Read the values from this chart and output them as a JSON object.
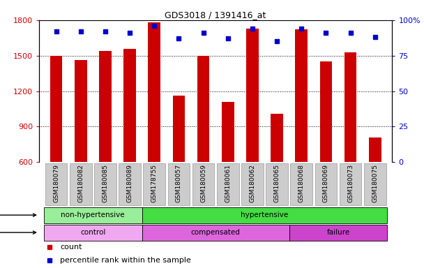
{
  "title": "GDS3018 / 1391416_at",
  "samples": [
    "GSM180079",
    "GSM180082",
    "GSM180085",
    "GSM180089",
    "GSM178755",
    "GSM180057",
    "GSM180059",
    "GSM180061",
    "GSM180062",
    "GSM180065",
    "GSM180068",
    "GSM180069",
    "GSM180073",
    "GSM180075"
  ],
  "counts": [
    1500,
    1460,
    1540,
    1560,
    1780,
    1160,
    1500,
    1110,
    1730,
    1010,
    1720,
    1450,
    1530,
    810
  ],
  "percentiles": [
    92,
    92,
    92,
    91,
    96,
    87,
    91,
    87,
    94,
    85,
    94,
    91,
    91,
    88
  ],
  "ymin": 600,
  "ymax": 1800,
  "yticks_left": [
    600,
    900,
    1200,
    1500,
    1800
  ],
  "pmin": 0,
  "pmax": 100,
  "pticks": [
    0,
    25,
    50,
    75,
    100
  ],
  "bar_color": "#cc0000",
  "dot_color": "#0000cc",
  "grid_lines": [
    900,
    1200,
    1500
  ],
  "strain_groups": [
    {
      "label": "non-hypertensive",
      "start": 0,
      "end": 4,
      "color": "#99ee99"
    },
    {
      "label": "hypertensive",
      "start": 4,
      "end": 14,
      "color": "#44dd44"
    }
  ],
  "disease_groups": [
    {
      "label": "control",
      "start": 0,
      "end": 4,
      "color": "#f0a8f0"
    },
    {
      "label": "compensated",
      "start": 4,
      "end": 10,
      "color": "#dd66dd"
    },
    {
      "label": "failure",
      "start": 10,
      "end": 14,
      "color": "#cc44cc"
    }
  ],
  "xticklabel_bg": "#cccccc",
  "xticklabel_edge": "#999999"
}
